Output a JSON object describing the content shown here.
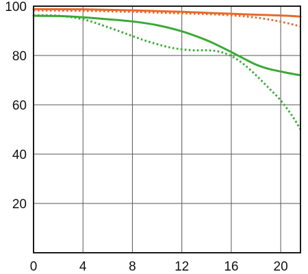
{
  "chart_data": {
    "type": "line",
    "title": "",
    "xlabel": "",
    "ylabel": "",
    "xlim": [
      0,
      21.6
    ],
    "ylim": [
      0,
      100
    ],
    "grid": true,
    "x_ticks": [
      0,
      4,
      8,
      12,
      16,
      20
    ],
    "y_ticks": [
      20,
      40,
      60,
      80,
      100
    ],
    "x_tick_labels": [
      "0",
      "4",
      "8",
      "12",
      "16",
      "20"
    ],
    "y_tick_labels": [
      "20",
      "40",
      "60",
      "80",
      "100"
    ],
    "series": [
      {
        "color": "#e8692a",
        "line_style": "solid",
        "x": [
          0,
          4,
          8,
          12,
          16,
          20,
          21.6
        ],
        "y": [
          98.8,
          98.7,
          98.3,
          97.7,
          96.9,
          96.2,
          95.8
        ]
      },
      {
        "color": "#e8692a",
        "line_style": "dotted",
        "x": [
          0,
          4,
          8,
          12,
          14,
          16,
          18,
          20,
          21.6
        ],
        "y": [
          98.3,
          98.1,
          97.7,
          97.1,
          96.8,
          96.3,
          95.4,
          93.7,
          91.8
        ]
      },
      {
        "color": "#3aaa35",
        "line_style": "solid",
        "x": [
          0,
          2,
          4,
          6,
          8,
          10,
          12,
          14,
          15,
          16,
          17,
          18,
          19,
          20,
          21,
          21.6
        ],
        "y": [
          96.1,
          96.0,
          95.5,
          94.7,
          93.8,
          92.3,
          89.8,
          86.2,
          83.9,
          81.4,
          78.8,
          76.3,
          74.6,
          73.5,
          72.5,
          72.0
        ]
      },
      {
        "color": "#3aaa35",
        "line_style": "dotted",
        "x": [
          0,
          2,
          4,
          6,
          8,
          9,
          10,
          11,
          12,
          13,
          14,
          15,
          16,
          17,
          18,
          19,
          20,
          21,
          21.6
        ],
        "y": [
          96.3,
          96.1,
          94.7,
          91.5,
          87.9,
          86.1,
          84.6,
          83.3,
          82.5,
          82.1,
          82.1,
          81.6,
          79.8,
          76.5,
          72.0,
          67.0,
          61.8,
          55.0,
          50.0
        ]
      }
    ]
  }
}
